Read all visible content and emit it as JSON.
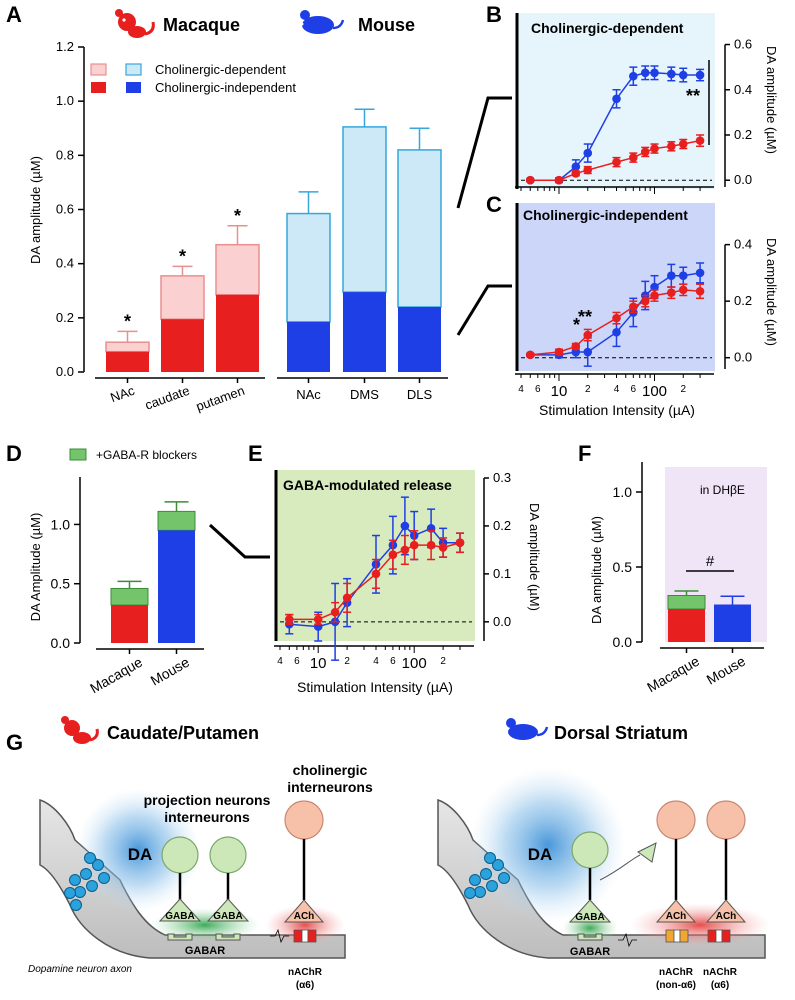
{
  "figure_title": "Multi-panel figure: dopamine release in macaque vs mouse striatum",
  "panel_letters": [
    "A",
    "B",
    "C",
    "D",
    "E",
    "F",
    "G"
  ],
  "species": {
    "macaque": "Macaque",
    "mouse": "Mouse"
  },
  "colors": {
    "macaque_dark": "#e81f1f",
    "macaque_light": "#fbd0d0",
    "macaque_light_edge": "#e98f8f",
    "mouse_dark": "#1f3fe6",
    "mouse_light": "#cde9f8",
    "mouse_light_edge": "#35a7dc",
    "panel_b_bg": "#e6f4fb",
    "panel_c_bg": "#ccd6f8",
    "panel_e_bg": "#d7ebbe",
    "panel_f_bg": "#efe5f7",
    "gaba_green": "#74c46c",
    "neuron_green": "#cce8b8",
    "neuron_pink": "#f7c0a8",
    "da_glow": "#5aa7dd",
    "ach_glow": "#e84a4a"
  },
  "chart_data": [
    {
      "panel": "A",
      "type": "bar",
      "stacked": true,
      "ylabel": "DA amplitude (µM)",
      "ylim": [
        0,
        1.2
      ],
      "yticks": [
        "0.0",
        "0.2",
        "0.4",
        "0.6",
        "0.8",
        "1.0",
        "1.2"
      ],
      "legend": [
        "Cholinergic-dependent",
        "Cholinergic-independent"
      ],
      "groups": [
        {
          "species": "Macaque",
          "categories": [
            "NAc",
            "caudate",
            "putamen"
          ],
          "independent": [
            0.075,
            0.195,
            0.285
          ],
          "total": [
            0.11,
            0.355,
            0.47
          ],
          "error": [
            0.04,
            0.035,
            0.07
          ],
          "significance": [
            "*",
            "*",
            "*"
          ]
        },
        {
          "species": "Mouse",
          "categories": [
            "NAc",
            "DMS",
            "DLS"
          ],
          "independent": [
            0.185,
            0.295,
            0.24
          ],
          "total": [
            0.585,
            0.905,
            0.82
          ],
          "error": [
            0.08,
            0.065,
            0.08
          ],
          "significance": [
            "",
            "",
            ""
          ]
        }
      ]
    },
    {
      "panel": "B",
      "type": "line",
      "xscale": "log",
      "title": "Cholinergic-dependent",
      "ylabel": "DA amplitude (µM)",
      "ylim": [
        -0.03,
        0.62
      ],
      "yticks": [
        "0.0",
        "0.2",
        "0.4",
        "0.6"
      ],
      "significance": "**",
      "series": [
        {
          "name": "Mouse",
          "x": [
            5,
            10,
            15,
            20,
            40,
            60,
            80,
            100,
            150,
            200,
            300
          ],
          "y": [
            0.0,
            0.0,
            0.06,
            0.12,
            0.36,
            0.46,
            0.475,
            0.475,
            0.47,
            0.465,
            0.465
          ],
          "err": [
            0.005,
            0.01,
            0.03,
            0.04,
            0.04,
            0.04,
            0.03,
            0.03,
            0.03,
            0.03,
            0.025
          ]
        },
        {
          "name": "Macaque",
          "x": [
            5,
            10,
            15,
            20,
            40,
            60,
            80,
            100,
            150,
            200,
            300
          ],
          "y": [
            0.0,
            0.0,
            0.03,
            0.045,
            0.08,
            0.1,
            0.125,
            0.14,
            0.15,
            0.16,
            0.175
          ],
          "err": [
            0.005,
            0.005,
            0.01,
            0.015,
            0.02,
            0.02,
            0.02,
            0.02,
            0.02,
            0.02,
            0.025
          ]
        }
      ]
    },
    {
      "panel": "C",
      "type": "line",
      "xscale": "log",
      "title": "Cholinergic-independent",
      "ylabel": "DA amplitude (µM)",
      "xlabel": "Stimulation Intensity (µA)",
      "ylim": [
        -0.04,
        0.48
      ],
      "yticks": [
        "0.0",
        "0.2",
        "0.4"
      ],
      "xticks": [
        "4",
        "6",
        "10",
        "2",
        "4",
        "6",
        "100",
        "2"
      ],
      "significance": [
        "*",
        "**"
      ],
      "series": [
        {
          "name": "Mouse",
          "x": [
            5,
            10,
            15,
            20,
            40,
            60,
            80,
            100,
            150,
            200,
            300
          ],
          "y": [
            0.01,
            0.01,
            0.02,
            0.02,
            0.09,
            0.16,
            0.22,
            0.25,
            0.29,
            0.29,
            0.3
          ],
          "err": [
            0.005,
            0.01,
            0.02,
            0.05,
            0.05,
            0.05,
            0.05,
            0.04,
            0.04,
            0.03,
            0.035
          ]
        },
        {
          "name": "Macaque",
          "x": [
            5,
            10,
            15,
            20,
            40,
            60,
            80,
            100,
            150,
            200,
            300
          ],
          "y": [
            0.01,
            0.02,
            0.04,
            0.08,
            0.14,
            0.18,
            0.2,
            0.22,
            0.23,
            0.24,
            0.235
          ],
          "err": [
            0.005,
            0.01,
            0.01,
            0.02,
            0.02,
            0.02,
            0.02,
            0.02,
            0.02,
            0.02,
            0.025
          ]
        }
      ]
    },
    {
      "panel": "D",
      "type": "bar",
      "stacked": true,
      "ylabel": "DA Amplitude (µM)",
      "ylim": [
        0,
        1.4
      ],
      "yticks": [
        "0.0",
        "0.5",
        "1.0"
      ],
      "legend": "+GABA-R blockers",
      "categories": [
        "Macaque",
        "Mouse"
      ],
      "base": [
        0.32,
        0.95
      ],
      "total": [
        0.46,
        1.11
      ],
      "error": [
        0.06,
        0.08
      ]
    },
    {
      "panel": "E",
      "type": "line",
      "xscale": "log",
      "title": "GABA-modulated release",
      "ylabel": "DA amplitude (µM)",
      "xlabel": "Stimulation Intensity (µA)",
      "ylim": [
        -0.04,
        0.3
      ],
      "yticks": [
        "0.0",
        "0.1",
        "0.2",
        "0.3"
      ],
      "xticks": [
        "4",
        "6",
        "10",
        "2",
        "4",
        "6",
        "100",
        "2"
      ],
      "series": [
        {
          "name": "Mouse",
          "x": [
            5,
            10,
            15,
            20,
            40,
            60,
            80,
            100,
            150,
            200,
            300
          ],
          "y": [
            -0.005,
            -0.01,
            0.0,
            0.04,
            0.12,
            0.16,
            0.2,
            0.18,
            0.195,
            0.165,
            0.165
          ],
          "err": [
            0.02,
            0.03,
            0.08,
            0.05,
            0.06,
            0.06,
            0.06,
            0.05,
            0.04,
            0.03,
            0.02
          ]
        },
        {
          "name": "Macaque",
          "x": [
            5,
            10,
            15,
            20,
            40,
            60,
            80,
            100,
            150,
            200,
            300
          ],
          "y": [
            0.005,
            0.005,
            0.02,
            0.05,
            0.1,
            0.14,
            0.15,
            0.16,
            0.16,
            0.155,
            0.165
          ],
          "err": [
            0.01,
            0.01,
            0.02,
            0.03,
            0.03,
            0.03,
            0.03,
            0.03,
            0.03,
            0.02,
            0.02
          ]
        }
      ]
    },
    {
      "panel": "F",
      "type": "bar",
      "stacked": true,
      "ylabel": "DA amplitude (µM)",
      "ylim": [
        0,
        1.2
      ],
      "yticks": [
        "0.0",
        "0.5",
        "1.0"
      ],
      "note": "in DHβE",
      "significance": "#",
      "categories": [
        "Macaque",
        "Mouse"
      ],
      "base": [
        0.22,
        0.25
      ],
      "total": [
        0.31,
        0.25
      ],
      "error": [
        0.03,
        0.055
      ]
    }
  ],
  "schematic": {
    "macaque_title": "Caudate/Putamen",
    "mouse_title": "Dorsal Striatum",
    "da_label": "DA",
    "projection_label_1": "projection neurons",
    "projection_label_2": "interneurons",
    "cholinergic_label_1": "cholinergic",
    "cholinergic_label_2": "interneurons",
    "gaba_label": "GABA",
    "ach_label": "ACh",
    "gabar_label": "GABAR",
    "axon_label": "Dopamine neuron axon",
    "nachr_label": "nAChR",
    "alpha6_label": "(α6)",
    "non_alpha6_label": "(non-α6)"
  }
}
